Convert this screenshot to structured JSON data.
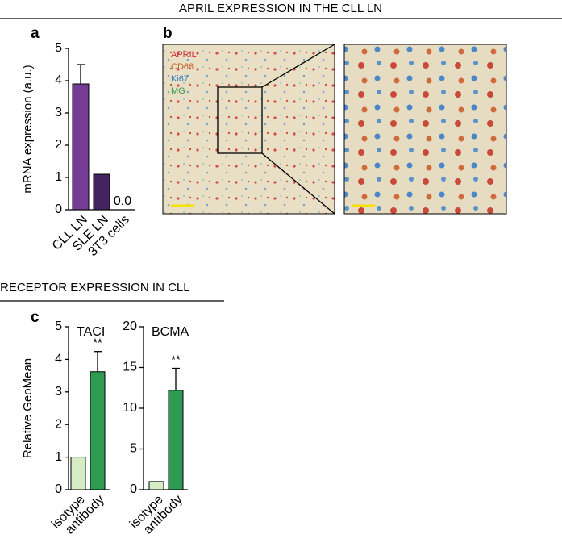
{
  "headers": {
    "top": "APRIL EXPRESSION IN THE CLL LN",
    "bottom": "RECEPTOR EXPRESSION IN CLL"
  },
  "panel_labels": [
    "a",
    "b",
    "c"
  ],
  "stains": [
    {
      "name": "APRIL",
      "color": "#d0303a"
    },
    {
      "name": "CD68",
      "color": "#c8632a"
    },
    {
      "name": "Ki67",
      "color": "#3a7fc4"
    },
    {
      "name": "MG",
      "color": "#3a9a4a"
    }
  ],
  "chart_data": [
    {
      "type": "bar",
      "ylabel": "mRNA expression (a.u.)",
      "categories": [
        "CLL LN",
        "SLE LN",
        "3T3 cells"
      ],
      "values": [
        3.9,
        1.1,
        0.0
      ],
      "errors": [
        0.6,
        null,
        null
      ],
      "value_labels": [
        null,
        null,
        "0.0"
      ],
      "colors": [
        "#763c95",
        "#452260",
        "#452260"
      ],
      "ylim": [
        0,
        5
      ],
      "yticks": [
        0,
        1,
        2,
        3,
        4,
        5
      ]
    },
    {
      "type": "bar",
      "title": "TACI",
      "ylabel": "Relative GeoMean",
      "categories": [
        "isotype",
        "antibody"
      ],
      "values": [
        1,
        3.62
      ],
      "errors": [
        null,
        0.62
      ],
      "annotations": [
        null,
        "**"
      ],
      "colors": [
        "#d6ecc4",
        "#2f9a52"
      ],
      "ylim": [
        0,
        5
      ],
      "yticks": [
        0,
        1,
        2,
        3,
        4,
        5
      ]
    },
    {
      "type": "bar",
      "title": "BCMA",
      "categories": [
        "isotype",
        "antibody"
      ],
      "values": [
        1,
        12.2
      ],
      "errors": [
        null,
        2.7
      ],
      "annotations": [
        null,
        "**"
      ],
      "colors": [
        "#d6ecc4",
        "#2f9a52"
      ],
      "ylim": [
        0,
        20
      ],
      "yticks": [
        0,
        5,
        10,
        15,
        20
      ]
    }
  ]
}
